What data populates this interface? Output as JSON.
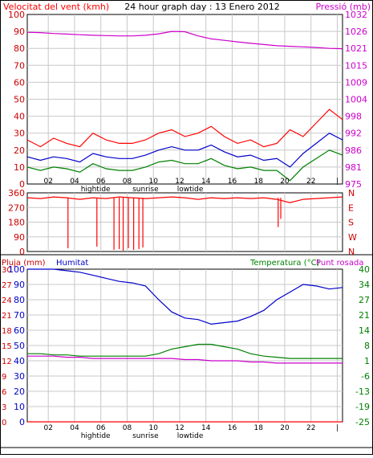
{
  "chart_data": [
    {
      "type": "line",
      "title": "24 hour graph day : 13 Enero 2012",
      "left_axis_label": "Velocitat del vent (kmh)",
      "right_axis_label": "Pressió (mb)",
      "left_ticks": [
        "0",
        "10",
        "20",
        "30",
        "40",
        "50",
        "60",
        "70",
        "80",
        "90",
        "100"
      ],
      "right_ticks": [
        "975",
        "981",
        "986",
        "992",
        "998",
        "1004",
        "1009",
        "1015",
        "1021",
        "1026",
        "1032"
      ],
      "x_ticks": [
        "02",
        "04",
        "06",
        "08",
        "10",
        "12",
        "14",
        "16",
        "18",
        "20",
        "22",
        "|"
      ],
      "x_sublabels": [
        "hightide",
        "sunrise",
        "lowtide"
      ],
      "ylim_left": [
        0,
        100
      ],
      "ylim_right": [
        975,
        1032
      ],
      "grid": true,
      "colors": {
        "wind_gust": "#ff0000",
        "wind_avg": "#0000cc",
        "wind_min": "#008000",
        "pressure": "#cc00cc"
      },
      "series": [
        {
          "key": "pressure",
          "axis": "right",
          "color": "#cc00cc",
          "x": [
            0,
            1,
            2,
            3,
            4,
            5,
            6,
            7,
            8,
            9,
            10,
            11,
            12,
            13,
            14,
            15,
            16,
            17,
            18,
            19,
            20,
            21,
            22,
            23,
            24
          ],
          "values": [
            1026,
            1025.9,
            1025.6,
            1025.4,
            1025.2,
            1025,
            1024.9,
            1024.8,
            1024.8,
            1025,
            1025.5,
            1026.3,
            1026.2,
            1024.8,
            1023.8,
            1023.3,
            1022.8,
            1022.3,
            1021.9,
            1021.5,
            1021.3,
            1021.1,
            1020.9,
            1020.6,
            1020.5
          ]
        },
        {
          "key": "wind_gust",
          "axis": "left",
          "color": "#ff0000",
          "x": [
            0,
            1,
            2,
            3,
            4,
            5,
            6,
            7,
            8,
            9,
            10,
            11,
            12,
            13,
            14,
            15,
            16,
            17,
            18,
            19,
            20,
            21,
            22,
            23,
            24
          ],
          "values": [
            26,
            22,
            27,
            24,
            22,
            30,
            26,
            24,
            24,
            26,
            30,
            32,
            28,
            30,
            34,
            28,
            24,
            26,
            22,
            24,
            32,
            28,
            36,
            44,
            38
          ]
        },
        {
          "key": "wind_avg",
          "axis": "left",
          "color": "#0000cc",
          "x": [
            0,
            1,
            2,
            3,
            4,
            5,
            6,
            7,
            8,
            9,
            10,
            11,
            12,
            13,
            14,
            15,
            16,
            17,
            18,
            19,
            20,
            21,
            22,
            23,
            24
          ],
          "values": [
            16,
            14,
            16,
            15,
            13,
            18,
            16,
            15,
            15,
            17,
            20,
            22,
            20,
            20,
            23,
            19,
            16,
            17,
            14,
            15,
            10,
            18,
            24,
            30,
            26
          ]
        },
        {
          "key": "wind_min",
          "axis": "left",
          "color": "#008000",
          "x": [
            0,
            1,
            2,
            3,
            4,
            5,
            6,
            7,
            8,
            9,
            10,
            11,
            12,
            13,
            14,
            15,
            16,
            17,
            18,
            19,
            20,
            21,
            22,
            23,
            24
          ],
          "values": [
            10,
            8,
            10,
            9,
            7,
            12,
            9,
            8,
            8,
            10,
            13,
            14,
            12,
            12,
            15,
            11,
            9,
            10,
            8,
            8,
            2,
            10,
            15,
            20,
            17
          ]
        }
      ]
    },
    {
      "type": "line",
      "left_ticks": [
        "0",
        "90",
        "180",
        "270",
        "360"
      ],
      "right_ticks": [
        "N",
        "W",
        "S",
        "E",
        "N"
      ],
      "ylim": [
        0,
        360
      ],
      "grid": true,
      "series": [
        {
          "key": "wind_direction",
          "color": "#ff0000",
          "x": [
            0,
            1,
            2,
            3,
            4,
            5,
            6,
            7,
            8,
            9,
            10,
            11,
            12,
            13,
            14,
            15,
            16,
            17,
            18,
            19,
            20,
            21,
            22,
            23,
            24
          ],
          "values": [
            330,
            325,
            335,
            330,
            320,
            330,
            325,
            335,
            330,
            325,
            330,
            335,
            330,
            320,
            330,
            325,
            330,
            325,
            330,
            320,
            300,
            320,
            325,
            330,
            335
          ],
          "drops": [
            {
              "x": 3.1,
              "v": 20
            },
            {
              "x": 5.3,
              "v": 30
            },
            {
              "x": 6.6,
              "v": 10
            },
            {
              "x": 7.0,
              "v": 15
            },
            {
              "x": 7.3,
              "v": 5
            },
            {
              "x": 7.7,
              "v": 20
            },
            {
              "x": 8.1,
              "v": 10
            },
            {
              "x": 8.5,
              "v": 15
            },
            {
              "x": 8.8,
              "v": 25
            },
            {
              "x": 19.1,
              "v": 150
            },
            {
              "x": 19.3,
              "v": 200
            }
          ]
        }
      ]
    },
    {
      "type": "line",
      "label_rain": "Pluja (mm)",
      "label_humidity": "Humitat",
      "label_temp": "Temperatura (°C)",
      "label_dew": "Punt rosada",
      "left_ticks_rain": [
        "0",
        "3",
        "6",
        "9",
        "12",
        "15",
        "18",
        "21",
        "24",
        "27",
        "30"
      ],
      "left_ticks_humidity": [
        "0",
        "10",
        "20",
        "30",
        "40",
        "50",
        "60",
        "70",
        "80",
        "90",
        "100"
      ],
      "right_ticks_temp": [
        "-25",
        "-19",
        "-13",
        "-6",
        "1",
        "8",
        "14",
        "21",
        "27",
        "34",
        "40"
      ],
      "x_ticks": [
        "02",
        "04",
        "06",
        "08",
        "10",
        "12",
        "14",
        "16",
        "18",
        "20",
        "22",
        "|"
      ],
      "x_sublabels": [
        "hightide",
        "sunrise",
        "lowtide"
      ],
      "ylim_humidity": [
        0,
        100
      ],
      "ylim_temp": [
        -25,
        40
      ],
      "grid": true,
      "series": [
        {
          "key": "humidity",
          "axis": "humidity",
          "color": "#0000cc",
          "x": [
            0,
            1,
            2,
            3,
            4,
            5,
            6,
            7,
            8,
            9,
            10,
            11,
            12,
            13,
            14,
            15,
            16,
            17,
            18,
            19,
            20,
            21,
            22,
            23,
            24
          ],
          "values": [
            100,
            100,
            100,
            99,
            98,
            96,
            94,
            92,
            91,
            89,
            80,
            72,
            68,
            67,
            64,
            65,
            66,
            69,
            73,
            80,
            85,
            90,
            89,
            87,
            88
          ]
        },
        {
          "key": "temperature",
          "axis": "temp",
          "color": "#008000",
          "x": [
            0,
            1,
            2,
            3,
            4,
            5,
            6,
            7,
            8,
            9,
            10,
            11,
            12,
            13,
            14,
            15,
            16,
            17,
            18,
            19,
            20,
            21,
            22,
            23,
            24
          ],
          "values": [
            4,
            4,
            3.5,
            3.5,
            3,
            3,
            3,
            3,
            3,
            3,
            4,
            6,
            7,
            8,
            8,
            7,
            6,
            4,
            3,
            2.5,
            2,
            2,
            2,
            2,
            2
          ]
        },
        {
          "key": "dew_point",
          "axis": "temp",
          "color": "#cc00cc",
          "x": [
            0,
            1,
            2,
            3,
            4,
            5,
            6,
            7,
            8,
            9,
            10,
            11,
            12,
            13,
            14,
            15,
            16,
            17,
            18,
            19,
            20,
            21,
            22,
            23,
            24
          ],
          "values": [
            3,
            3,
            3,
            2.5,
            2.5,
            2,
            2,
            2,
            2,
            2,
            2,
            2,
            1.5,
            1.5,
            1,
            1,
            1,
            0.5,
            0.5,
            0,
            0,
            0,
            0,
            0,
            0
          ]
        },
        {
          "key": "rain",
          "axis": "rain",
          "color": "#ff0000",
          "x": [
            0,
            24
          ],
          "values": [
            0,
            0
          ]
        }
      ]
    }
  ]
}
